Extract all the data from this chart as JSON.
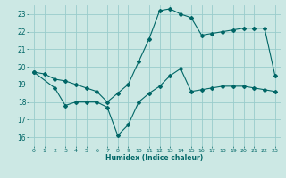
{
  "xlabel": "Humidex (Indice chaleur)",
  "background_color": "#cce8e4",
  "grid_color": "#99cccc",
  "line_color": "#006666",
  "xlim": [
    -0.5,
    23.5
  ],
  "ylim": [
    15.5,
    23.5
  ],
  "yticks": [
    16,
    17,
    18,
    19,
    20,
    21,
    22,
    23
  ],
  "xticks": [
    0,
    1,
    2,
    3,
    4,
    5,
    6,
    7,
    8,
    9,
    10,
    11,
    12,
    13,
    14,
    15,
    16,
    17,
    18,
    19,
    20,
    21,
    22,
    23
  ],
  "line1_x": [
    0,
    1,
    2,
    3,
    4,
    5,
    6,
    7,
    8,
    9,
    10,
    11,
    12,
    13,
    14,
    15,
    16,
    17,
    18,
    19,
    20,
    21,
    22,
    23
  ],
  "line1_y": [
    19.7,
    19.6,
    19.3,
    19.2,
    19.0,
    18.8,
    18.6,
    18.0,
    18.5,
    19.0,
    20.3,
    21.6,
    23.2,
    23.3,
    23.0,
    22.8,
    21.8,
    21.9,
    22.0,
    22.1,
    22.2,
    22.2,
    22.2,
    19.5
  ],
  "line2_x": [
    0,
    2,
    3,
    4,
    5,
    6,
    7,
    8,
    9,
    10,
    11,
    12,
    13,
    14,
    15,
    16,
    17,
    18,
    19,
    20,
    21,
    22,
    23
  ],
  "line2_y": [
    19.7,
    18.8,
    17.8,
    18.0,
    18.0,
    18.0,
    17.7,
    16.1,
    16.7,
    18.0,
    18.5,
    18.9,
    19.5,
    19.9,
    18.6,
    18.7,
    18.8,
    18.9,
    18.9,
    18.9,
    18.8,
    18.7,
    18.6
  ]
}
